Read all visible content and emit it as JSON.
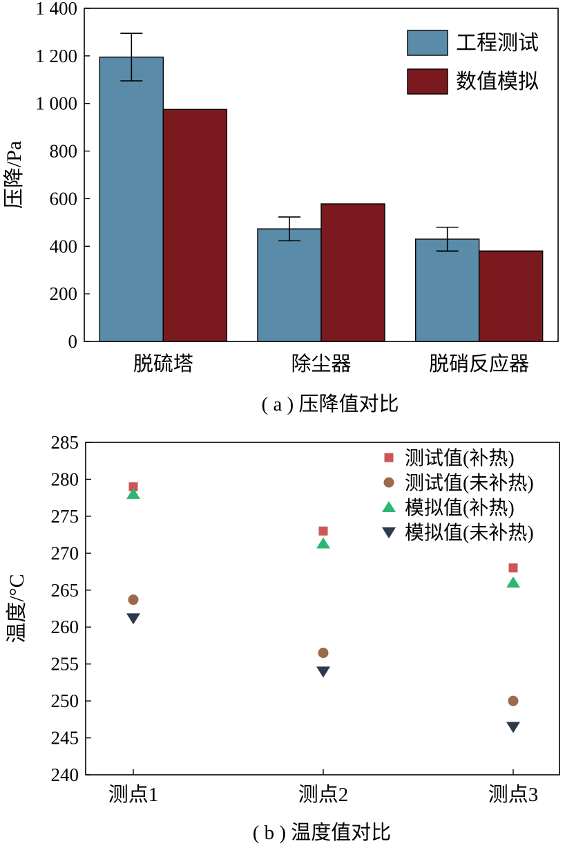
{
  "chart_data": [
    {
      "type": "bar",
      "caption": "( a ) 压降值对比",
      "ylabel": "压降/Pa",
      "xlabel": "",
      "ylim": [
        0,
        1400
      ],
      "yticks": [
        0,
        200,
        400,
        600,
        800,
        1000,
        1200,
        1400
      ],
      "ytick_labels": [
        "0",
        "200",
        "400",
        "600",
        "800",
        "1 000",
        "1 200",
        "1 400"
      ],
      "categories": [
        "脱硫塔",
        "除尘器",
        "脱硝反应器"
      ],
      "series": [
        {
          "name": "工程测试",
          "color": "#5a8ba8",
          "values": [
            1195,
            473,
            430
          ],
          "error": [
            100,
            50,
            50
          ]
        },
        {
          "name": "数值模拟",
          "color": "#7b1a1e",
          "values": [
            975,
            578,
            380
          ]
        }
      ],
      "legend_position": "top-right",
      "grid": false
    },
    {
      "type": "scatter",
      "caption": "( b ) 温度值对比",
      "ylabel": "温度/°C",
      "xlabel": "",
      "ylim": [
        240,
        285
      ],
      "yticks": [
        240,
        245,
        250,
        255,
        260,
        265,
        270,
        275,
        280,
        285
      ],
      "ytick_labels": [
        "240",
        "245",
        "250",
        "255",
        "260",
        "265",
        "270",
        "275",
        "280",
        "285"
      ],
      "categories": [
        "测点1",
        "测点2",
        "测点3"
      ],
      "series": [
        {
          "name": "测试值(补热)",
          "marker": "square",
          "color": "#cd5555",
          "values": [
            279,
            273,
            268
          ]
        },
        {
          "name": "测试值(未补热)",
          "marker": "circle",
          "color": "#9a6a4a",
          "values": [
            263.7,
            256.5,
            250
          ]
        },
        {
          "name": "模拟值(补热)",
          "marker": "triangle-up",
          "color": "#2cb673",
          "values": [
            278,
            271.3,
            266
          ]
        },
        {
          "name": "模拟值(未补热)",
          "marker": "triangle-down",
          "color": "#2c3a4d",
          "values": [
            261.2,
            254,
            246.5
          ]
        }
      ],
      "legend_position": "top-right",
      "grid": false
    }
  ]
}
